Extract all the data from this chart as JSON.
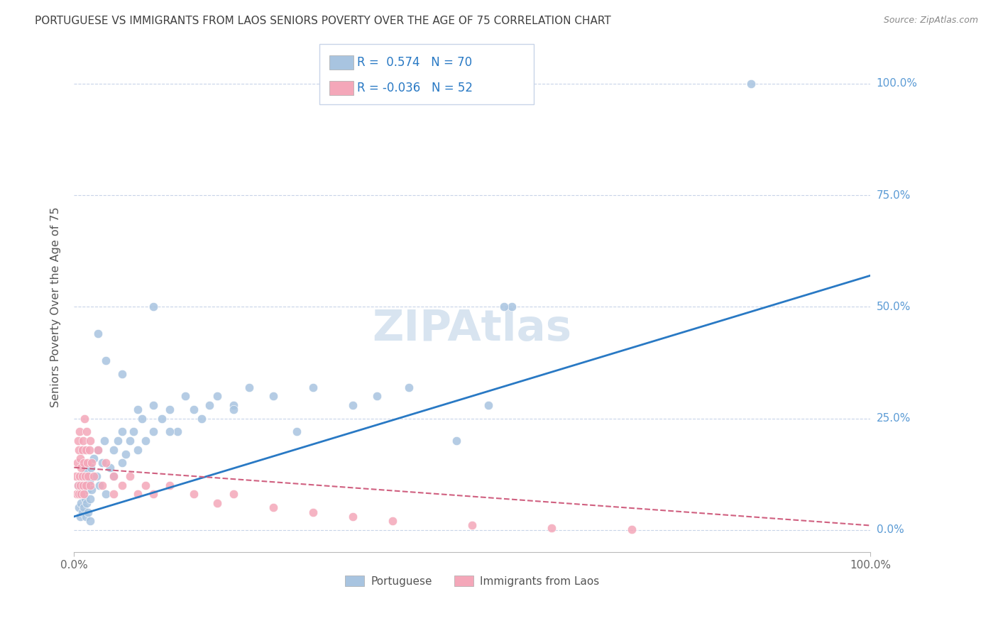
{
  "title": "PORTUGUESE VS IMMIGRANTS FROM LAOS SENIORS POVERTY OVER THE AGE OF 75 CORRELATION CHART",
  "source": "Source: ZipAtlas.com",
  "ylabel": "Seniors Poverty Over the Age of 75",
  "blue_R": 0.574,
  "blue_N": 70,
  "pink_R": -0.036,
  "pink_N": 52,
  "blue_color": "#a8c4e0",
  "pink_color": "#f4a7b9",
  "blue_line_color": "#2979c4",
  "pink_line_color": "#d06080",
  "grid_color": "#c8d4e8",
  "title_color": "#404040",
  "right_axis_color": "#5b9bd5",
  "watermark_color": "#d8e4f0",
  "blue_scatter_x": [
    0.5,
    0.6,
    0.7,
    0.8,
    0.9,
    1.0,
    1.0,
    1.1,
    1.2,
    1.3,
    1.4,
    1.5,
    1.5,
    1.6,
    1.7,
    1.8,
    1.9,
    2.0,
    2.0,
    2.1,
    2.2,
    2.5,
    2.8,
    3.0,
    3.2,
    3.5,
    3.8,
    4.0,
    4.5,
    5.0,
    5.0,
    5.5,
    6.0,
    6.0,
    6.5,
    7.0,
    7.5,
    8.0,
    8.5,
    9.0,
    10.0,
    10.0,
    11.0,
    12.0,
    13.0,
    14.0,
    15.0,
    16.0,
    17.0,
    18.0,
    20.0,
    22.0,
    25.0,
    28.0,
    30.0,
    35.0,
    38.0,
    42.0,
    48.0,
    52.0,
    55.0,
    3.0,
    4.0,
    6.0,
    8.0,
    10.0,
    12.0,
    54.0,
    20.0,
    85.0
  ],
  "blue_scatter_y": [
    10.0,
    5.0,
    8.0,
    3.0,
    6.0,
    12.0,
    4.0,
    8.0,
    5.0,
    10.0,
    7.0,
    3.0,
    13.0,
    6.0,
    9.0,
    4.0,
    11.0,
    7.0,
    2.0,
    14.0,
    9.0,
    16.0,
    12.0,
    18.0,
    10.0,
    15.0,
    20.0,
    8.0,
    14.0,
    18.0,
    12.0,
    20.0,
    15.0,
    22.0,
    17.0,
    20.0,
    22.0,
    18.0,
    25.0,
    20.0,
    22.0,
    28.0,
    25.0,
    27.0,
    22.0,
    30.0,
    27.0,
    25.0,
    28.0,
    30.0,
    28.0,
    32.0,
    30.0,
    22.0,
    32.0,
    28.0,
    30.0,
    32.0,
    20.0,
    28.0,
    50.0,
    44.0,
    38.0,
    35.0,
    27.0,
    50.0,
    22.0,
    50.0,
    27.0,
    100.0
  ],
  "pink_scatter_x": [
    0.2,
    0.3,
    0.4,
    0.5,
    0.5,
    0.6,
    0.6,
    0.7,
    0.7,
    0.8,
    0.8,
    0.9,
    0.9,
    1.0,
    1.0,
    1.1,
    1.1,
    1.2,
    1.2,
    1.3,
    1.4,
    1.5,
    1.5,
    1.6,
    1.7,
    1.8,
    1.9,
    2.0,
    2.0,
    2.2,
    2.5,
    3.0,
    3.5,
    4.0,
    5.0,
    5.0,
    6.0,
    7.0,
    8.0,
    9.0,
    10.0,
    12.0,
    15.0,
    18.0,
    20.0,
    25.0,
    30.0,
    35.0,
    40.0,
    50.0,
    60.0,
    70.0
  ],
  "pink_scatter_y": [
    12.0,
    8.0,
    15.0,
    10.0,
    20.0,
    8.0,
    18.0,
    12.0,
    22.0,
    10.0,
    16.0,
    8.0,
    14.0,
    18.0,
    12.0,
    10.0,
    20.0,
    15.0,
    8.0,
    25.0,
    12.0,
    18.0,
    10.0,
    22.0,
    15.0,
    12.0,
    18.0,
    10.0,
    20.0,
    15.0,
    12.0,
    18.0,
    10.0,
    15.0,
    12.0,
    8.0,
    10.0,
    12.0,
    8.0,
    10.0,
    8.0,
    10.0,
    8.0,
    6.0,
    8.0,
    5.0,
    4.0,
    3.0,
    2.0,
    1.0,
    0.5,
    0.2
  ],
  "blue_line_x0": 0,
  "blue_line_x1": 100,
  "blue_line_y0": 3.0,
  "blue_line_y1": 57.0,
  "pink_line_x0": 0,
  "pink_line_x1": 100,
  "pink_line_y0": 14.0,
  "pink_line_y1": 1.0,
  "xlim": [
    0,
    100
  ],
  "ylim": [
    -5,
    105
  ],
  "figsize": [
    14.06,
    8.92
  ],
  "dpi": 100
}
